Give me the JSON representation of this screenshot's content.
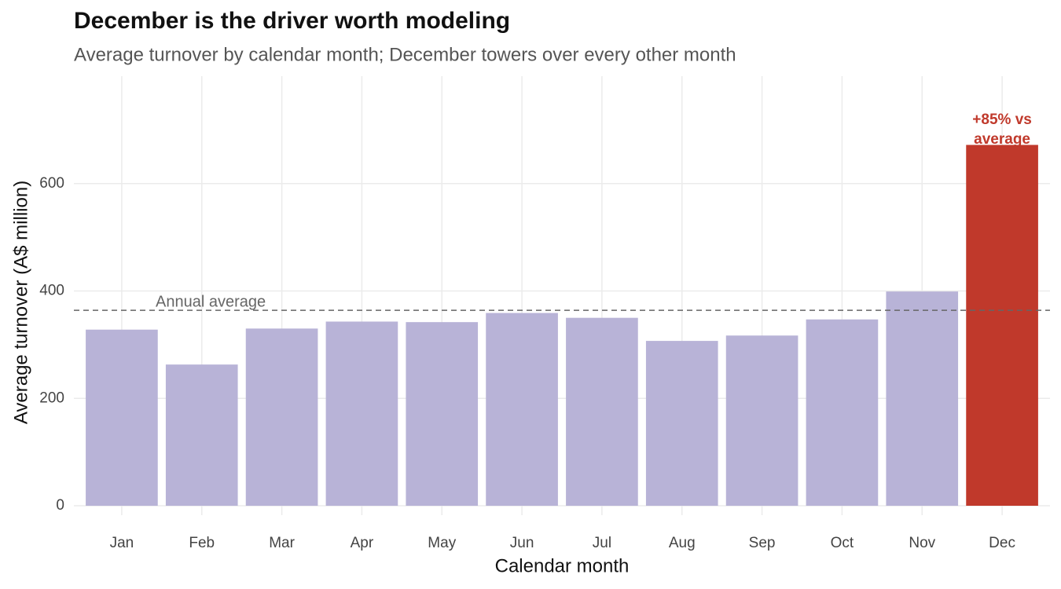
{
  "chart_data": {
    "type": "bar",
    "title": "December is the driver worth modeling",
    "subtitle": "Average turnover by calendar month; December towers over every other month",
    "x_label": "Calendar month",
    "y_label": "Average turnover (A$ million)",
    "categories": [
      "Jan",
      "Feb",
      "Mar",
      "Apr",
      "May",
      "Jun",
      "Jul",
      "Aug",
      "Sep",
      "Oct",
      "Nov",
      "Dec"
    ],
    "values": [
      328,
      263,
      330,
      343,
      342,
      359,
      350,
      307,
      317,
      347,
      399,
      672
    ],
    "colors": [
      "#b8b3d7",
      "#b8b3d7",
      "#b8b3d7",
      "#b8b3d7",
      "#b8b3d7",
      "#b8b3d7",
      "#b8b3d7",
      "#b8b3d7",
      "#b8b3d7",
      "#b8b3d7",
      "#b8b3d7",
      "#c0392b"
    ],
    "reference_line": {
      "value": 364,
      "label": "Annual average",
      "color": "#666666"
    },
    "annotation": "+85% vs average",
    "ylim": [
      0,
      800
    ],
    "yticks": [
      0,
      200,
      400,
      600
    ],
    "grid": true
  }
}
